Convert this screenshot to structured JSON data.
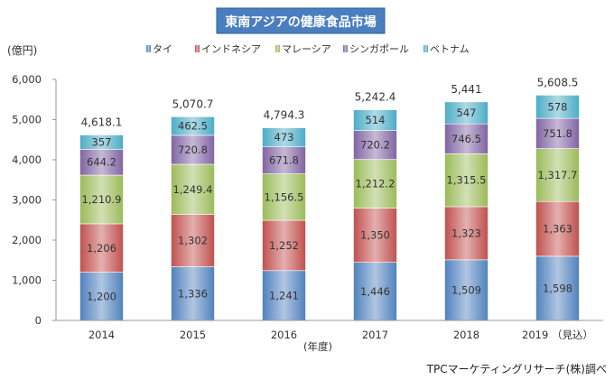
{
  "chart_data": {
    "type": "bar",
    "stacked": true,
    "title": "東南アジアの健康食品市場",
    "ylabel": "(億円)",
    "xlabel": "(年度)",
    "ylim": [
      0,
      6000
    ],
    "yticks": [
      "0",
      "1,000",
      "2,000",
      "3,000",
      "4,000",
      "5,000",
      "6,000"
    ],
    "ytick_values": [
      0,
      1000,
      2000,
      3000,
      4000,
      5000,
      6000
    ],
    "categories": [
      "2014",
      "2015",
      "2016",
      "2017",
      "2018",
      "2019 （見込）"
    ],
    "series": [
      {
        "name": "タイ",
        "color": "#4f81bd",
        "values": [
          1200,
          1336,
          1241,
          1446,
          1509,
          1598
        ],
        "labels": [
          "1,200",
          "1,336",
          "1,241",
          "1,446",
          "1,509",
          "1,598"
        ]
      },
      {
        "name": "インドネシア",
        "color": "#c0504d",
        "values": [
          1206,
          1302,
          1252,
          1350,
          1323,
          1363
        ],
        "labels": [
          "1,206",
          "1,302",
          "1,252",
          "1,350",
          "1,323",
          "1,363"
        ]
      },
      {
        "name": "マレーシア",
        "color": "#9bbb59",
        "values": [
          1210.9,
          1249.4,
          1156.5,
          1212.2,
          1315.5,
          1317.7
        ],
        "labels": [
          "1,210.9",
          "1,249.4",
          "1,156.5",
          "1,212.2",
          "1,315.5",
          "1,317.7"
        ]
      },
      {
        "name": "シンガポール",
        "color": "#8064a2",
        "values": [
          644.2,
          720.8,
          671.8,
          720.2,
          746.5,
          751.8
        ],
        "labels": [
          "644.2",
          "720.8",
          "671.8",
          "720.2",
          "746.5",
          "751.8"
        ]
      },
      {
        "name": "ベトナム",
        "color": "#4bacc6",
        "values": [
          357,
          462.5,
          473,
          514,
          547,
          578
        ],
        "labels": [
          "357",
          "462.5",
          "473",
          "514",
          "547",
          "578"
        ]
      }
    ],
    "totals": [
      "4,618.1",
      "5,070.7",
      "4,794.3",
      "5,242.4",
      "5,441",
      "5,608.5"
    ],
    "source": "TPCマーケティングリサーチ(株)調べ",
    "grid": false,
    "legend_position": "top"
  }
}
